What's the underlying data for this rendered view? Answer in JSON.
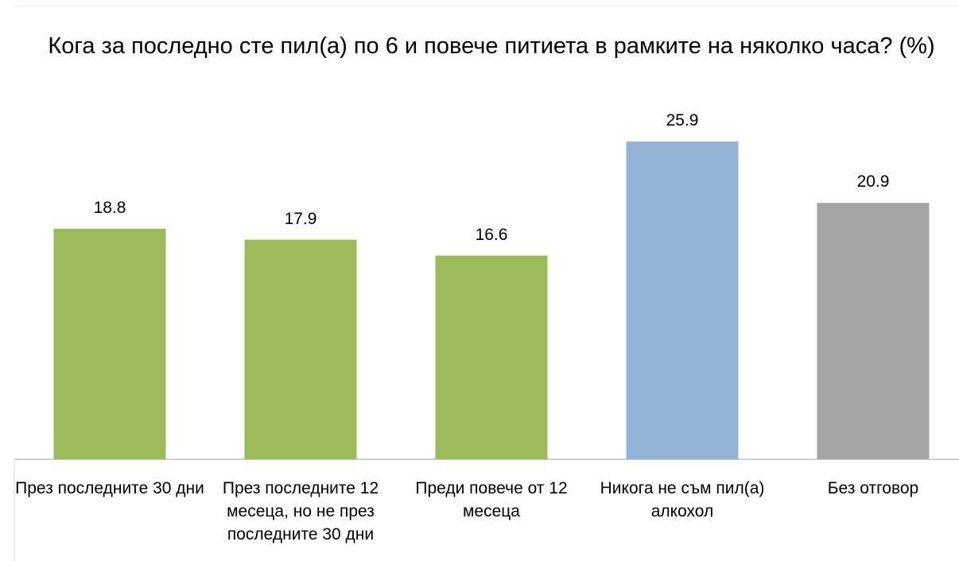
{
  "chart_data": {
    "type": "bar",
    "title": "Кога за последно сте пил(а) по 6 и повече питиета в рамките на няколко часа? (%)",
    "categories": [
      "През последните 30 дни",
      "През последните 12 месеца, но не през последните 30 дни",
      "Преди повече от 12 месеца",
      "Никога не съм пил(а) алкохол",
      "Без отговор"
    ],
    "values": [
      18.8,
      17.9,
      16.6,
      25.9,
      20.9
    ],
    "colors": [
      "#9bbb59",
      "#9bbb59",
      "#9bbb59",
      "#95b3d7",
      "#a5a5a5"
    ]
  }
}
